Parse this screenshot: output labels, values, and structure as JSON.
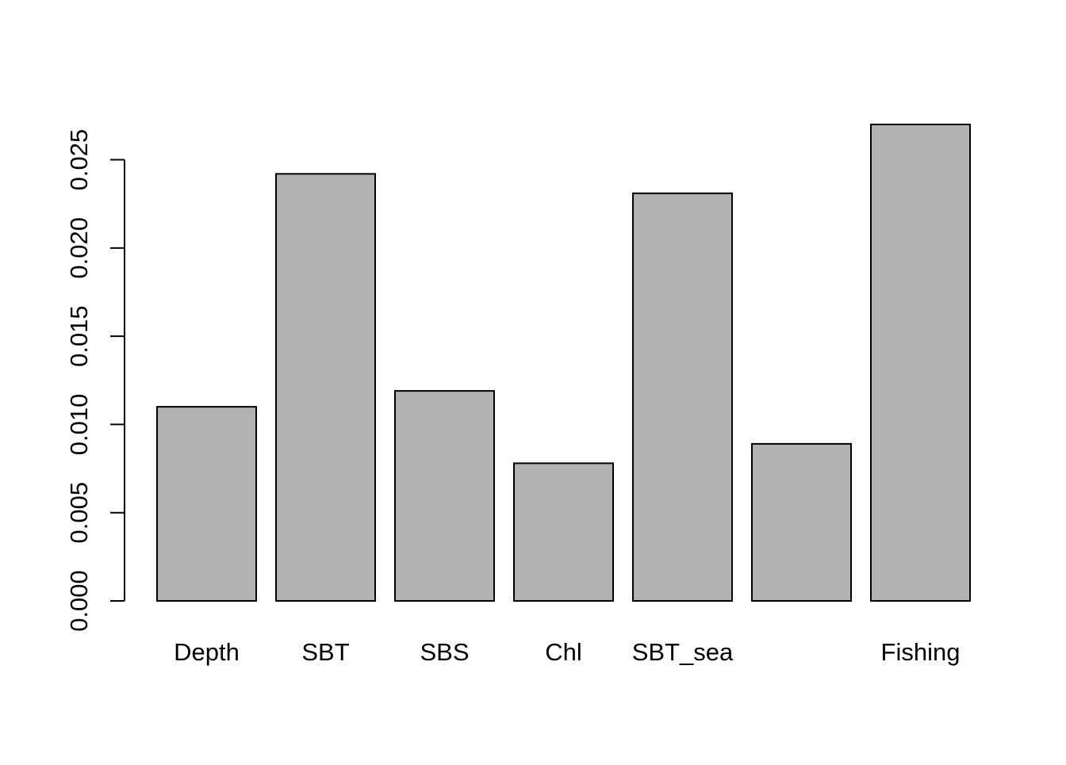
{
  "chart_data": {
    "type": "bar",
    "title": "",
    "xlabel": "",
    "ylabel": "",
    "categories": [
      "Depth",
      "SBT",
      "SBS",
      "Chl",
      "SBT_sea",
      "",
      "Fishing"
    ],
    "values": [
      0.011,
      0.0242,
      0.0119,
      0.0078,
      0.0231,
      0.0089,
      0.027
    ],
    "ylim": [
      0,
      0.027
    ],
    "yticks": [
      0.0,
      0.005,
      0.01,
      0.015,
      0.02,
      0.025
    ],
    "ytick_labels": [
      "0.000",
      "0.005",
      "0.010",
      "0.015",
      "0.020",
      "0.025"
    ],
    "grid": false,
    "legend": "none",
    "colors": {
      "bar_fill": "#b2b2b2",
      "bar_stroke": "#000000",
      "axis": "#000000",
      "background": "#ffffff"
    }
  }
}
